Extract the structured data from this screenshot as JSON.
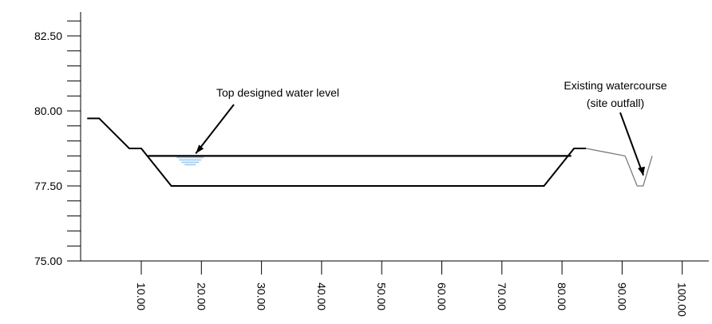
{
  "chart_data": {
    "type": "line",
    "title": "",
    "xlabel": "",
    "ylabel": "",
    "xlim": [
      0,
      105
    ],
    "ylim": [
      75,
      83
    ],
    "x_ticks": [
      10,
      20,
      30,
      40,
      50,
      60,
      70,
      80,
      90,
      100
    ],
    "x_tick_labels": [
      "10.00",
      "20.00",
      "30.00",
      "40.00",
      "50.00",
      "60.00",
      "70.00",
      "80.00",
      "90.00",
      "100.00"
    ],
    "y_ticks": [
      75.0,
      77.5,
      80.0,
      82.5
    ],
    "y_tick_labels": [
      "75.00",
      "77.50",
      "80.00",
      "82.50"
    ],
    "series": [
      {
        "values": [
          {
            "x": 1,
            "y": 79.75
          },
          {
            "x": 3,
            "y": 79.75
          },
          {
            "x": 8,
            "y": 78.75
          },
          {
            "x": 10,
            "y": 78.75
          },
          {
            "x": 15,
            "y": 77.5
          },
          {
            "x": 77,
            "y": 77.5
          },
          {
            "x": 82,
            "y": 78.75
          },
          {
            "x": 84,
            "y": 78.75
          }
        ]
      },
      {
        "values": [
          {
            "x": 84,
            "y": 78.75
          },
          {
            "x": 90.5,
            "y": 78.5
          },
          {
            "x": 92.5,
            "y": 77.5
          },
          {
            "x": 93.5,
            "y": 77.5
          },
          {
            "x": 95,
            "y": 78.5
          }
        ]
      },
      {
        "values": [
          {
            "x": 11,
            "y": 78.5
          },
          {
            "x": 81,
            "y": 78.5
          }
        ]
      }
    ],
    "annotations": [
      {
        "text": "Top designed water level",
        "target": {
          "x": 18,
          "y": 78.5
        }
      },
      {
        "text": "Existing watercourse",
        "text2": "(site outfall)",
        "target": {
          "x": 93,
          "y": 77.8
        }
      }
    ],
    "grid": false
  },
  "colors": {
    "ground": "#000000",
    "ground_ext": "#7a7a7a",
    "water_symbol": "#9ec9ec"
  }
}
